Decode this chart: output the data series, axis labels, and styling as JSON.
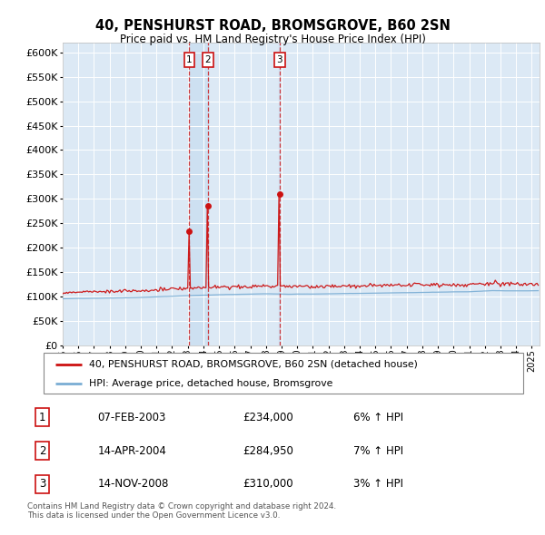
{
  "title1": "40, PENSHURST ROAD, BROMSGROVE, B60 2SN",
  "title2": "Price paid vs. HM Land Registry's House Price Index (HPI)",
  "plot_bg_color": "#dce9f5",
  "ylim": [
    0,
    620000
  ],
  "yticks": [
    0,
    50000,
    100000,
    150000,
    200000,
    250000,
    300000,
    350000,
    400000,
    450000,
    500000,
    550000,
    600000
  ],
  "xlim_start": 1995.0,
  "xlim_end": 2025.5,
  "legend_label_red": "40, PENSHURST ROAD, BROMSGROVE, B60 2SN (detached house)",
  "legend_label_blue": "HPI: Average price, detached house, Bromsgrove",
  "transactions": [
    {
      "num": 1,
      "date": "07-FEB-2003",
      "price": "£234,000",
      "hpi": "6% ↑ HPI",
      "year": 2003.1
    },
    {
      "num": 2,
      "date": "14-APR-2004",
      "price": "£284,950",
      "hpi": "7% ↑ HPI",
      "year": 2004.29
    },
    {
      "num": 3,
      "date": "14-NOV-2008",
      "price": "£310,000",
      "hpi": "3% ↑ HPI",
      "year": 2008.87
    }
  ],
  "transaction_values": [
    234000,
    284950,
    310000
  ],
  "footer": "Contains HM Land Registry data © Crown copyright and database right 2024.\nThis data is licensed under the Open Government Licence v3.0.",
  "red_color": "#cc1111",
  "blue_color": "#7aadd4",
  "shade_color": "#c8ddf0"
}
